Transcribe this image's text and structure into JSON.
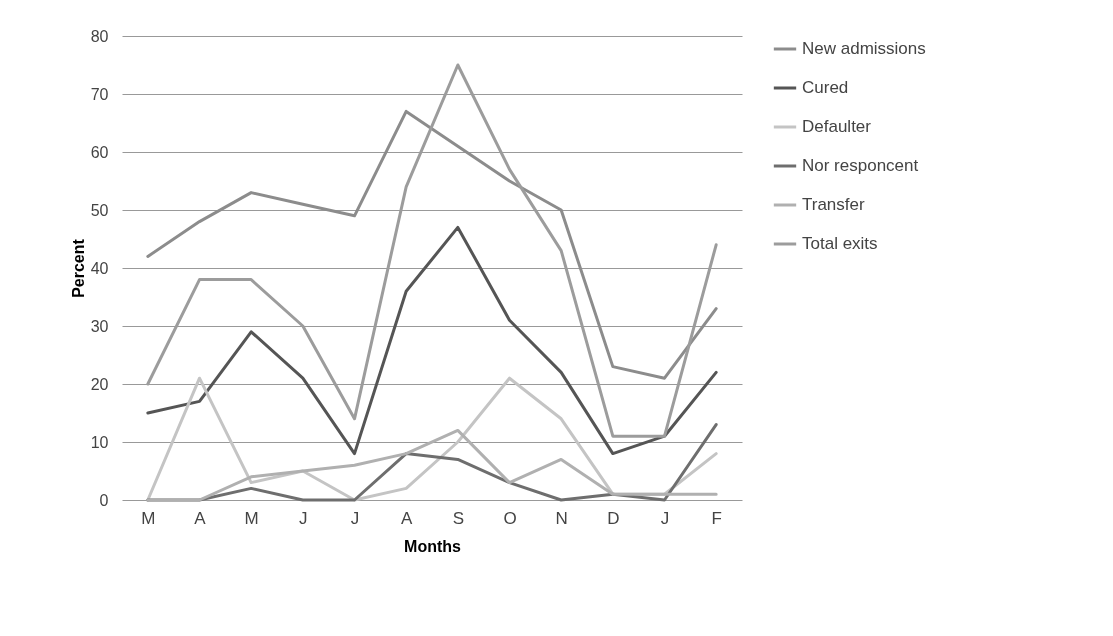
{
  "chart_data": {
    "type": "line",
    "xlabel": "Months",
    "ylabel": "Percent",
    "categories": [
      "M",
      "A",
      "M",
      "J",
      "J",
      "A",
      "S",
      "O",
      "N",
      "D",
      "J",
      "F"
    ],
    "series": [
      {
        "name": "New admissions",
        "color": "#8c8c8c",
        "values": [
          42,
          48,
          53,
          51,
          49,
          67,
          61,
          55,
          50,
          23,
          21,
          33
        ]
      },
      {
        "name": "Cured",
        "color": "#555555",
        "values": [
          15,
          17,
          29,
          21,
          8,
          36,
          47,
          31,
          22,
          8,
          11,
          22
        ]
      },
      {
        "name": "Defaulter",
        "color": "#c4c4c4",
        "values": [
          0,
          21,
          3,
          5,
          0,
          2,
          10,
          21,
          14,
          1,
          1,
          8
        ]
      },
      {
        "name": "Nor responcent",
        "color": "#6e6e6e",
        "values": [
          0,
          0,
          2,
          0,
          0,
          8,
          7,
          3,
          0,
          1,
          0,
          13
        ]
      },
      {
        "name": "Transfer",
        "color": "#b0b0b0",
        "values": [
          0,
          0,
          4,
          5,
          6,
          8,
          12,
          3,
          7,
          1,
          1,
          1
        ]
      },
      {
        "name": "Total exits",
        "color": "#9c9c9c",
        "values": [
          20,
          38,
          38,
          30,
          14,
          54,
          75,
          57,
          43,
          11,
          11,
          44
        ]
      }
    ],
    "ylim": [
      0,
      80
    ],
    "yticks": [
      0,
      10,
      20,
      30,
      40,
      50,
      60,
      70,
      80
    ],
    "grid": "y",
    "legend": "right",
    "marker": "none",
    "line_style": "solid"
  }
}
